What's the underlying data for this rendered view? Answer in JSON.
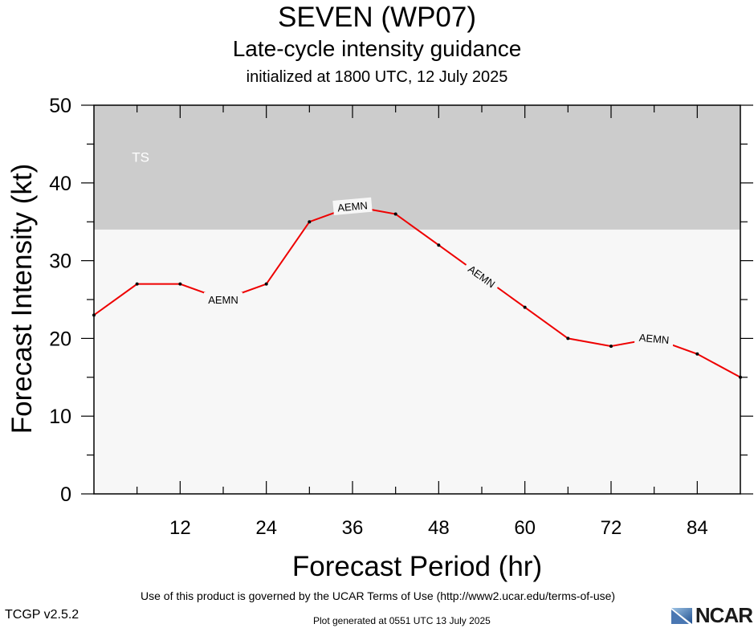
{
  "header": {
    "title": "SEVEN (WP07)",
    "subtitle": "Late-cycle intensity guidance",
    "initialized": "initialized at 1800 UTC, 12 July 2025"
  },
  "footer": {
    "terms": "Use of this product is governed by the UCAR Terms of Use (http://www2.ucar.edu/terms-of-use)",
    "version": "TCGP v2.5.2",
    "generated": "Plot generated at 0551 UTC   13 July 2025",
    "logo_text": "NCAR"
  },
  "chart_data": {
    "type": "line",
    "title": "SEVEN (WP07)",
    "subtitle": "Late-cycle intensity guidance",
    "xlabel": "Forecast Period (hr)",
    "ylabel": "Forecast Intensity (kt)",
    "xlim": [
      0,
      90
    ],
    "ylim": [
      0,
      50
    ],
    "xticks": [
      12,
      24,
      36,
      48,
      60,
      72,
      84
    ],
    "yticks": [
      0,
      10,
      20,
      30,
      40,
      50
    ],
    "grid": false,
    "bands": [
      {
        "label": "TS",
        "from": 34,
        "to": 50,
        "color": "#cccccc"
      }
    ],
    "background_color": "#f7f7f7",
    "series": [
      {
        "name": "AEMN",
        "color": "#ee0000",
        "x": [
          0,
          6,
          12,
          18,
          24,
          30,
          36,
          42,
          48,
          54,
          60,
          66,
          72,
          78,
          84,
          90
        ],
        "y": [
          23,
          27,
          27,
          25,
          27,
          35,
          37,
          36,
          32,
          28,
          24,
          20,
          19,
          20,
          18,
          15
        ],
        "label_points": [
          18,
          36,
          54,
          78
        ]
      }
    ]
  }
}
